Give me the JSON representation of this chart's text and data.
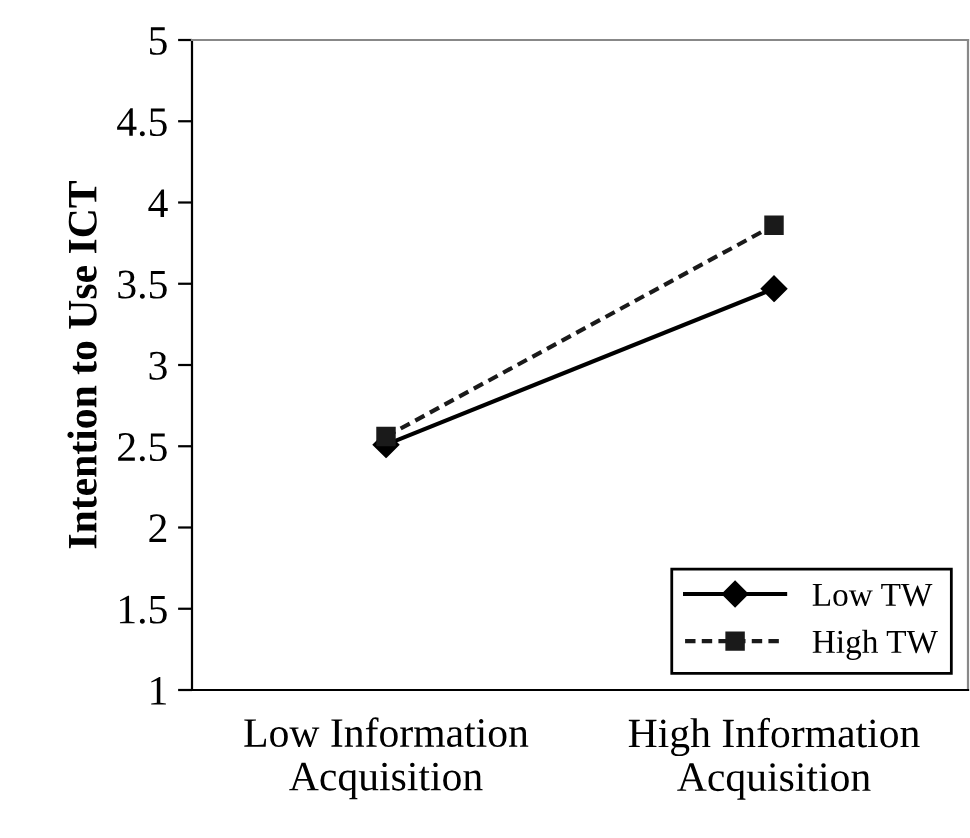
{
  "chart_data": {
    "type": "line",
    "ylabel": "Intention to Use ICT",
    "categories": [
      "Low Information\nAcquisition",
      "High Information\nAcquisition"
    ],
    "series": [
      {
        "name": "Low TW",
        "color": "#000000",
        "values": [
          2.51,
          3.47
        ],
        "marker": "diamond",
        "line_style": "solid"
      },
      {
        "name": "High TW",
        "color": "#1a1a1a",
        "values": [
          2.56,
          3.86
        ],
        "marker": "square",
        "line_style": "dashed"
      }
    ],
    "ylim": [
      1,
      5
    ],
    "yticks": [
      1,
      1.5,
      2,
      2.5,
      3,
      3.5,
      4,
      4.5,
      5
    ],
    "grid": false,
    "legend": "bottom right"
  }
}
